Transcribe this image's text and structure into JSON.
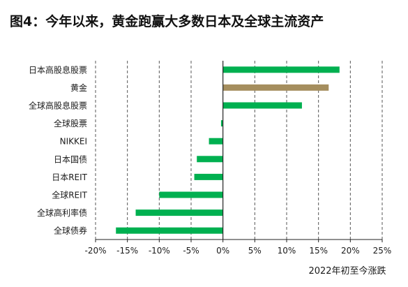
{
  "chart_data": {
    "type": "bar",
    "orientation": "horizontal",
    "title": "图4：今年以来，黄金跑赢大多数日本及全球主流资产",
    "xlabel": "2022年初至今涨跌",
    "ylabel": "",
    "xlim": [
      -20,
      25
    ],
    "x_ticks": [
      -20,
      -15,
      -10,
      -5,
      0,
      5,
      10,
      15,
      20,
      25
    ],
    "x_tick_labels": [
      "-20%",
      "-15%",
      "-10%",
      "-5%",
      "0%",
      "5%",
      "10%",
      "15%",
      "20%",
      "25%"
    ],
    "grid": "vertical-dashed",
    "legend": "none",
    "categories": [
      "日本高股息股票",
      "黄金",
      "全球高股息股票",
      "全球股票",
      "NIKKEI",
      "日本国债",
      "日本REIT",
      "全球REIT",
      "全球高利率债",
      "全球债券"
    ],
    "values": [
      18.3,
      16.6,
      12.4,
      -0.3,
      -2.2,
      -4.1,
      -4.5,
      -10.0,
      -13.7,
      -16.8
    ],
    "colors": {
      "bar": "#00B050",
      "highlight": "#A58E5E",
      "grid": "#555555",
      "axis": "#222222",
      "text": "#1a1a1a"
    },
    "highlight_category": "黄金"
  }
}
